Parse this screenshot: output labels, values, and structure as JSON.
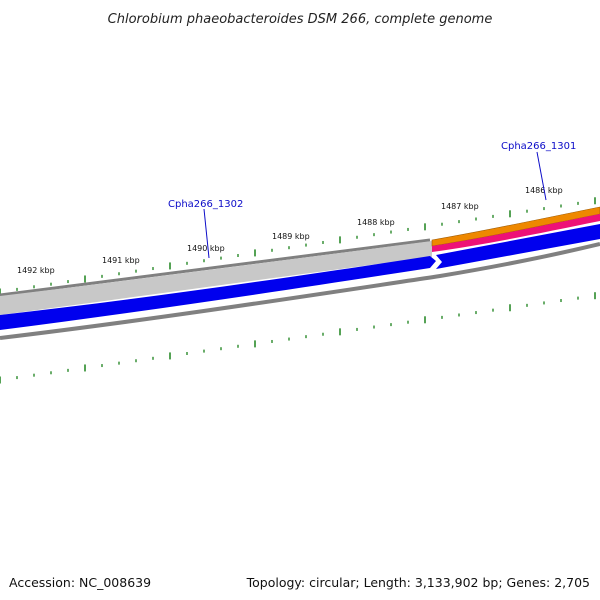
{
  "title": "Chlorobium phaeobacteroides DSM 266, complete genome",
  "footer": {
    "accession": "Accession: NC_008639",
    "summary": "Topology: circular; Length: 3,133,902 bp; Genes: 2,705"
  },
  "ticks": [
    {
      "label": "1486 kbp"
    },
    {
      "label": "1487 kbp"
    },
    {
      "label": "1488 kbp"
    },
    {
      "label": "1489 kbp"
    },
    {
      "label": "1490 kbp"
    },
    {
      "label": "1491 kbp"
    },
    {
      "label": "1492 kbp"
    }
  ],
  "genes": [
    {
      "label": "Cpha266_1301"
    },
    {
      "label": "Cpha266_1302"
    }
  ],
  "colors": {
    "backbone": "#808080",
    "feature_gray": "#c8c8c8",
    "strand_blue": "#0000ee",
    "orange_track": "#ee8800",
    "pink_track": "#ee1177",
    "tick_green": "#2a8a2a",
    "label_blue": "#0b0bc8"
  }
}
